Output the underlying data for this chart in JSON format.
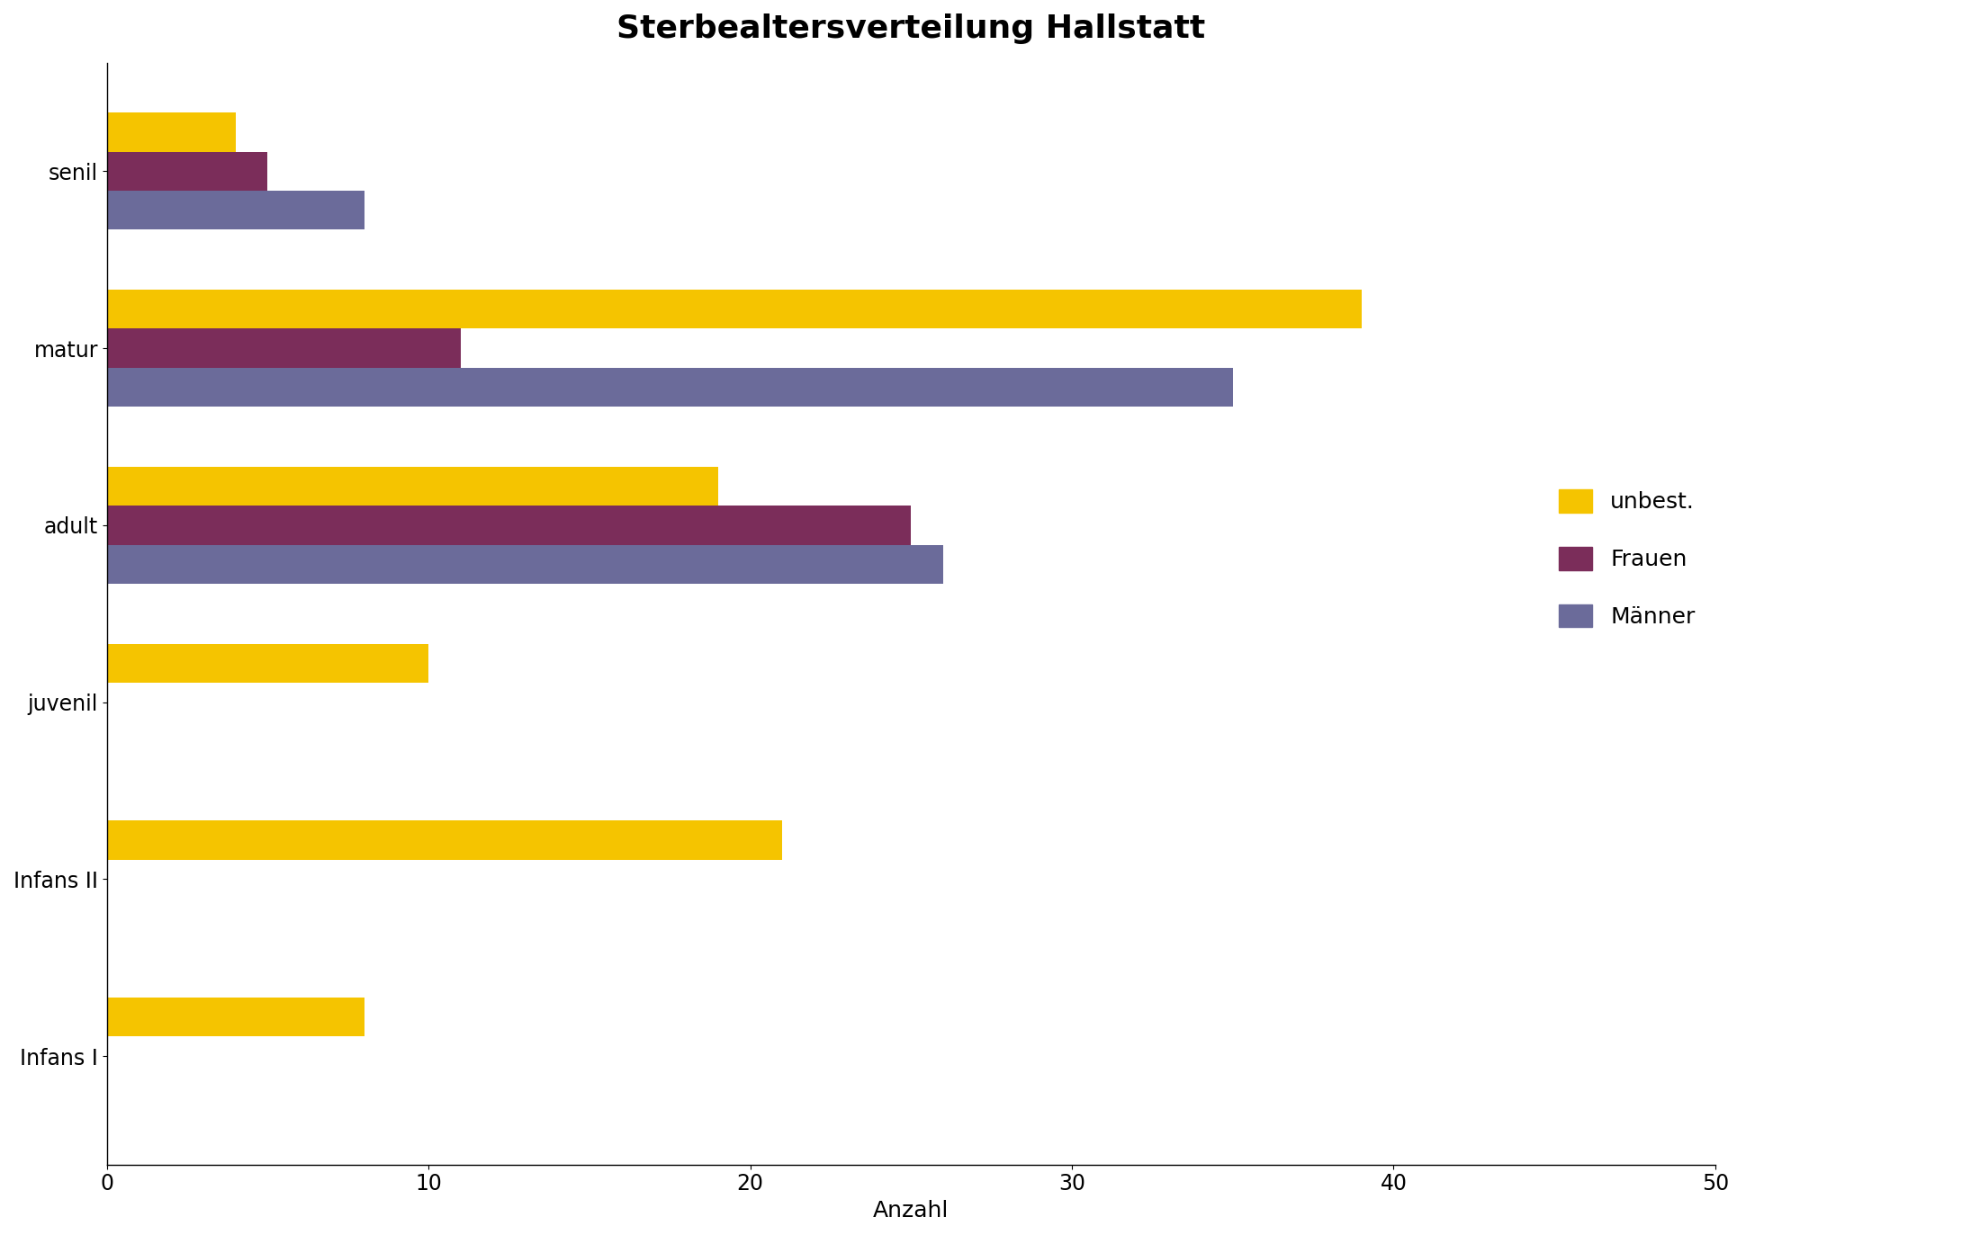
{
  "title": "Sterbealtersverteilung Hallstatt",
  "xlabel": "Anzahl",
  "categories": [
    "Infans I",
    "Infans II",
    "juvenil",
    "adult",
    "matur",
    "senil"
  ],
  "series": {
    "unbest.": [
      8,
      21,
      10,
      19,
      39,
      4
    ],
    "Frauen": [
      0,
      0,
      0,
      25,
      11,
      5
    ],
    "Männer": [
      0,
      0,
      0,
      26,
      35,
      8
    ]
  },
  "colors": {
    "unbest.": "#F5C400",
    "Frauen": "#7B2D5A",
    "Männer": "#6B6B9A"
  },
  "xlim": [
    0,
    50
  ],
  "xticks": [
    0,
    10,
    20,
    30,
    40,
    50
  ],
  "bar_height": 0.22,
  "legend_order": [
    "unbest.",
    "Frauen",
    "Männer"
  ],
  "title_fontsize": 26,
  "label_fontsize": 18,
  "tick_fontsize": 17,
  "legend_fontsize": 18,
  "background_color": "#FFFFFF",
  "border_color": "#000000",
  "figure_bg": "#FFFFFF"
}
